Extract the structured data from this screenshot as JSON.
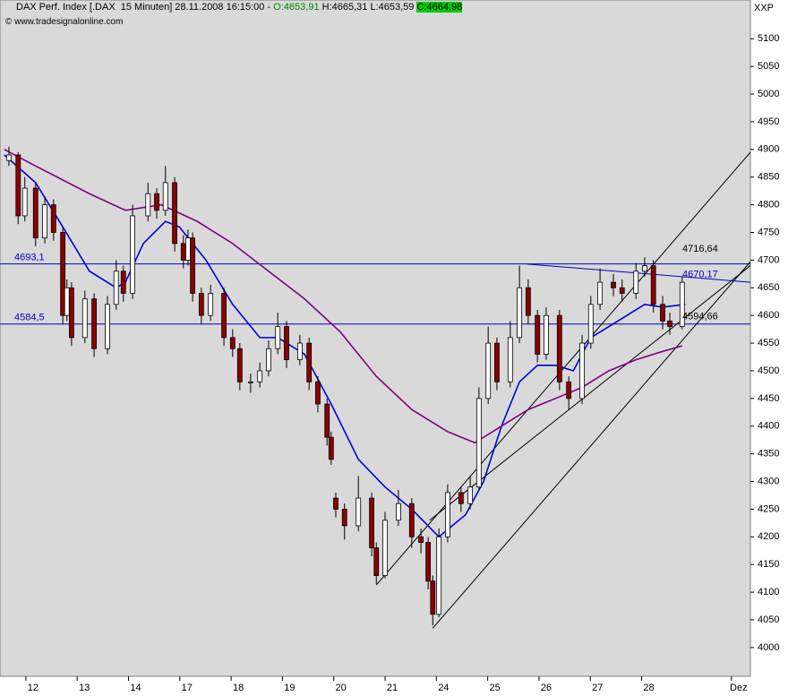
{
  "chart_data": {
    "type": "candlestick",
    "title": "DAX Perf. Index [.DAX  15 Minuten] 28.11.2008 16:15:00 - ",
    "ohlc_header": [
      "O:4653,91",
      "H:4665,31",
      "L:4653,59",
      "C:4664,98"
    ],
    "source": "© www.tradesignalonline.com",
    "axis_label": "XXP",
    "xlim": [
      -0.144,
      14.48
    ],
    "ylim": [
      3948,
      5170
    ],
    "yticks": [
      4000,
      4050,
      4100,
      4150,
      4200,
      4250,
      4300,
      4350,
      4400,
      4450,
      4500,
      4550,
      4600,
      4650,
      4700,
      4750,
      4800,
      4850,
      4900,
      4950,
      5000,
      5050,
      5100
    ],
    "xticks": [
      {
        "value": 0.5,
        "label": "12"
      },
      {
        "value": 1.5,
        "label": "13"
      },
      {
        "value": 2.5,
        "label": "14"
      },
      {
        "value": 3.5,
        "label": "17"
      },
      {
        "value": 4.5,
        "label": "18"
      },
      {
        "value": 5.5,
        "label": "19"
      },
      {
        "value": 6.5,
        "label": "20"
      },
      {
        "value": 7.5,
        "label": "21"
      },
      {
        "value": 8.5,
        "label": "24"
      },
      {
        "value": 9.5,
        "label": "25"
      },
      {
        "value": 10.5,
        "label": "26"
      },
      {
        "value": 11.5,
        "label": "27"
      },
      {
        "value": 12.5,
        "label": "28"
      },
      {
        "value": 14.25,
        "label": "Dez"
      }
    ],
    "x": [
      0.03,
      0.21,
      0.34,
      0.55,
      0.73,
      0.9,
      1.08,
      1.16,
      1.25,
      1.51,
      1.69,
      1.95,
      2.12,
      2.26,
      2.44,
      2.74,
      2.91,
      3.08,
      3.26,
      3.43,
      3.52,
      3.61,
      3.78,
      3.96,
      4.22,
      4.39,
      4.53,
      4.74,
      4.92,
      5.09,
      5.27,
      5.44,
      5.7,
      5.88,
      6.05,
      6.23,
      6.31,
      6.4,
      6.57,
      6.84,
      7.1,
      7.19,
      7.36,
      7.62,
      7.88,
      8.06,
      8.2,
      8.29,
      8.41,
      8.58,
      8.84,
      9.02,
      9.19,
      9.37,
      9.54,
      9.8,
      9.98,
      10.15,
      10.33,
      10.5,
      10.76,
      10.94,
      11.2,
      11.37,
      11.55,
      11.81,
      11.98,
      12.25,
      12.42,
      12.59,
      12.77,
      12.91,
      13.15
    ],
    "open": [
      4880,
      4890,
      4780,
      4830,
      4740,
      4800,
      4750,
      4600,
      4650,
      4560,
      4630,
      4540,
      4620,
      4680,
      4640,
      4780,
      4820,
      4790,
      4840,
      4730,
      4700,
      4740,
      4640,
      4600,
      4640,
      4560,
      4540,
      4480,
      4480,
      4500,
      4540,
      4580,
      4520,
      4550,
      4480,
      4440,
      4380,
      4270,
      4250,
      4220,
      4270,
      4180,
      4130,
      4230,
      4260,
      4200,
      4190,
      4120,
      4060,
      4200,
      4280,
      4260,
      4290,
      4450,
      4550,
      4480,
      4560,
      4650,
      4600,
      4530,
      4600,
      4480,
      4450,
      4550,
      4620,
      4660,
      4650,
      4640,
      4680,
      4690,
      4620,
      4590,
      4580
    ],
    "high": [
      4905,
      4895,
      4850,
      4840,
      4815,
      4810,
      4760,
      4665,
      4660,
      4645,
      4640,
      4635,
      4700,
      4690,
      4800,
      4840,
      4830,
      4870,
      4850,
      4745,
      4755,
      4750,
      4650,
      4655,
      4650,
      4575,
      4550,
      4495,
      4515,
      4555,
      4605,
      4590,
      4565,
      4560,
      4490,
      4450,
      4390,
      4280,
      4260,
      4310,
      4280,
      4190,
      4245,
      4285,
      4270,
      4215,
      4200,
      4130,
      4215,
      4295,
      4290,
      4310,
      4470,
      4580,
      4560,
      4590,
      4690,
      4665,
      4610,
      4615,
      4610,
      4490,
      4565,
      4635,
      4685,
      4675,
      4665,
      4695,
      4705,
      4700,
      4635,
      4605,
      4670
    ],
    "low": [
      4870,
      4765,
      4770,
      4725,
      4730,
      4735,
      4585,
      4590,
      4545,
      4550,
      4525,
      4530,
      4610,
      4625,
      4630,
      4770,
      4775,
      4780,
      4715,
      4685,
      4690,
      4625,
      4585,
      4590,
      4545,
      4525,
      4465,
      4460,
      4470,
      4490,
      4530,
      4505,
      4510,
      4465,
      4425,
      4365,
      4330,
      4235,
      4195,
      4210,
      4165,
      4115,
      4125,
      4220,
      4180,
      4170,
      4105,
      4040,
      4055,
      4190,
      4245,
      4250,
      4285,
      4440,
      4465,
      4470,
      4550,
      4585,
      4515,
      4520,
      4465,
      4430,
      4440,
      4540,
      4610,
      4635,
      4625,
      4630,
      4670,
      4605,
      4575,
      4565,
      4575
    ],
    "close": [
      4890,
      4780,
      4830,
      4740,
      4800,
      4750,
      4600,
      4650,
      4560,
      4630,
      4540,
      4620,
      4680,
      4640,
      4780,
      4820,
      4790,
      4840,
      4730,
      4700,
      4740,
      4640,
      4600,
      4640,
      4560,
      4540,
      4480,
      4480,
      4500,
      4540,
      4580,
      4520,
      4550,
      4480,
      4440,
      4380,
      4340,
      4250,
      4220,
      4270,
      4180,
      4130,
      4230,
      4260,
      4200,
      4190,
      4120,
      4060,
      4200,
      4280,
      4260,
      4290,
      4450,
      4550,
      4480,
      4560,
      4650,
      4600,
      4530,
      4600,
      4480,
      4450,
      4550,
      4620,
      4660,
      4650,
      4640,
      4680,
      4690,
      4620,
      4590,
      4580,
      4660
    ],
    "up_color": "#ffffff",
    "down_color": "#8b0000",
    "series": [
      {
        "color": "#0000dd",
        "x": [
          -0.06,
          0.55,
          1.08,
          1.6,
          2.12,
          2.3,
          2.65,
          3.08,
          3.35,
          3.87,
          4.39,
          4.92,
          5.27,
          5.79,
          6.31,
          6.84,
          7.36,
          7.88,
          8.41,
          8.93,
          9.28,
          9.63,
          9.98,
          10.33,
          10.68,
          11.03,
          11.37,
          11.9,
          12.42,
          12.77,
          13.21
        ],
        "values": [
          4890,
          4840,
          4760,
          4680,
          4650,
          4660,
          4730,
          4770,
          4760,
          4700,
          4620,
          4560,
          4560,
          4530,
          4440,
          4340,
          4290,
          4250,
          4200,
          4240,
          4300,
          4400,
          4480,
          4510,
          4510,
          4500,
          4560,
          4590,
          4620,
          4615,
          4620
        ]
      },
      {
        "color": "#800080",
        "x": [
          -0.06,
          0.55,
          1.6,
          2.3,
          3.0,
          3.7,
          4.39,
          5.09,
          5.79,
          6.49,
          7.19,
          7.88,
          8.58,
          9.11,
          9.63,
          10.15,
          10.68,
          11.2,
          11.72,
          12.25,
          12.77,
          13.15
        ],
        "values": [
          4900,
          4870,
          4820,
          4790,
          4800,
          4770,
          4730,
          4680,
          4630,
          4570,
          4490,
          4430,
          4390,
          4370,
          4400,
          4430,
          4450,
          4470,
          4500,
          4520,
          4535,
          4545
        ]
      }
    ],
    "hlines": [
      {
        "value": 4693.1,
        "label": "4693,1"
      },
      {
        "value": 4584.5,
        "label": "4584,5"
      }
    ],
    "hline_color": "#0000c0",
    "trendlines": [
      {
        "x": [
          7.19,
          14.48
        ],
        "y": [
          4113,
          4895
        ],
        "color": "#000000"
      },
      {
        "x": [
          8.29,
          14.48
        ],
        "y": [
          4035,
          4697
        ],
        "color": "#000000"
      },
      {
        "x": [
          10.12,
          14.48
        ],
        "y": [
          4693,
          4660
        ],
        "color": "#0000c0"
      },
      {
        "x": [
          8.23,
          14.48
        ],
        "y": [
          4230,
          4690
        ],
        "color": "#000000"
      }
    ],
    "price_labels": [
      {
        "value": 4716.64,
        "label": "4716,64",
        "color": "#000000"
      },
      {
        "value": 4670.17,
        "label": "4670,17",
        "color": "#0000c0"
      },
      {
        "value": 4594.66,
        "label": "4594,66",
        "color": "#000000"
      }
    ]
  }
}
